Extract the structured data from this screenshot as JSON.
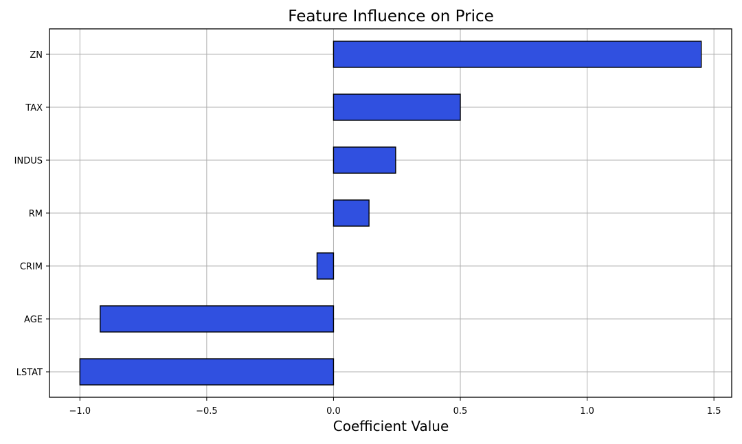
{
  "chart_data": {
    "type": "bar",
    "orientation": "horizontal",
    "title": "Feature Influence on Price",
    "xlabel": "Coefficient Value",
    "ylabel": "",
    "categories": [
      "ZN",
      "TAX",
      "INDUS",
      "RM",
      "CRIM",
      "AGE",
      "LSTAT"
    ],
    "values": [
      1.45,
      0.5,
      0.245,
      0.14,
      -0.065,
      -0.92,
      -1.0
    ],
    "xlim": [
      -1.12,
      1.57
    ],
    "xticks": [
      -1.0,
      -0.5,
      0.0,
      0.5,
      1.0,
      1.5
    ],
    "xtick_labels": [
      "−1.0",
      "−0.5",
      "0.0",
      "0.5",
      "1.0",
      "1.5"
    ],
    "grid": true,
    "bar_color": "#3050E0",
    "edge_color": "#000000",
    "grid_color": "#B0B0B0"
  }
}
